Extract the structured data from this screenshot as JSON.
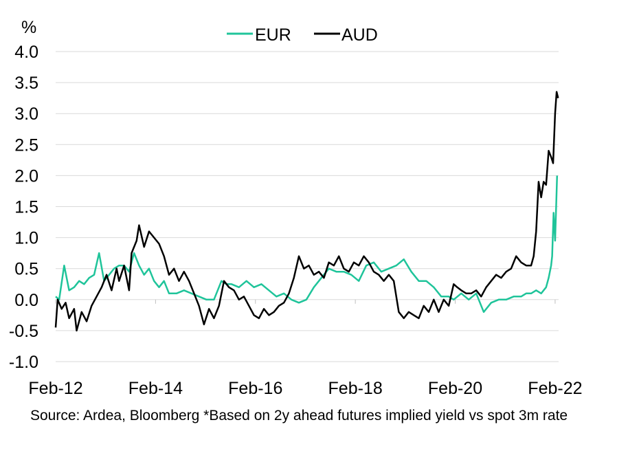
{
  "chart_data": {
    "type": "line",
    "ylabel": "%",
    "ylim": [
      -1.0,
      4.0
    ],
    "yticks": [
      "4.0",
      "3.5",
      "3.0",
      "2.5",
      "2.0",
      "1.5",
      "1.0",
      "0.5",
      "0.0",
      "-0.5",
      "-1.0"
    ],
    "ytick_values": [
      4.0,
      3.5,
      3.0,
      2.5,
      2.0,
      1.5,
      1.0,
      0.5,
      0.0,
      -0.5,
      -1.0
    ],
    "xlim": [
      2012.08,
      2022.15
    ],
    "xticks": [
      "Feb-12",
      "Feb-14",
      "Feb-16",
      "Feb-18",
      "Feb-20",
      "Feb-22"
    ],
    "xtick_values": [
      2012.08,
      2014.08,
      2016.08,
      2018.08,
      2020.08,
      2022.08
    ],
    "grid": true,
    "legend_position": "top-center",
    "series": [
      {
        "name": "EUR",
        "color": "#1fc49a",
        "x": [
          2012.08,
          2012.15,
          2012.25,
          2012.35,
          2012.45,
          2012.55,
          2012.65,
          2012.75,
          2012.85,
          2012.95,
          2013.05,
          2013.15,
          2013.25,
          2013.35,
          2013.45,
          2013.55,
          2013.65,
          2013.75,
          2013.85,
          2013.95,
          2014.05,
          2014.15,
          2014.25,
          2014.35,
          2014.5,
          2014.65,
          2014.8,
          2014.95,
          2015.1,
          2015.25,
          2015.4,
          2015.5,
          2015.6,
          2015.75,
          2015.9,
          2016.05,
          2016.2,
          2016.35,
          2016.5,
          2016.65,
          2016.8,
          2016.95,
          2017.1,
          2017.25,
          2017.4,
          2017.55,
          2017.7,
          2017.85,
          2018.0,
          2018.15,
          2018.3,
          2018.45,
          2018.6,
          2018.75,
          2018.9,
          2019.05,
          2019.2,
          2019.35,
          2019.5,
          2019.65,
          2019.8,
          2019.95,
          2020.05,
          2020.2,
          2020.35,
          2020.5,
          2020.65,
          2020.8,
          2020.95,
          2021.1,
          2021.25,
          2021.4,
          2021.5,
          2021.6,
          2021.7,
          2021.8,
          2021.85,
          2021.9,
          2021.95,
          2022.0,
          2022.02,
          2022.05,
          2022.08,
          2022.12
        ],
        "values": [
          0.05,
          0.0,
          0.55,
          0.15,
          0.2,
          0.3,
          0.25,
          0.35,
          0.4,
          0.75,
          0.3,
          0.4,
          0.5,
          0.55,
          0.55,
          0.45,
          0.75,
          0.55,
          0.4,
          0.5,
          0.3,
          0.2,
          0.3,
          0.1,
          0.1,
          0.15,
          0.1,
          0.05,
          0.0,
          0.0,
          0.3,
          0.25,
          0.25,
          0.2,
          0.3,
          0.2,
          0.25,
          0.15,
          0.05,
          0.1,
          0.0,
          -0.05,
          0.0,
          0.2,
          0.35,
          0.5,
          0.45,
          0.45,
          0.4,
          0.3,
          0.55,
          0.6,
          0.45,
          0.5,
          0.55,
          0.65,
          0.45,
          0.3,
          0.3,
          0.2,
          0.05,
          0.05,
          0.0,
          0.1,
          0.0,
          0.1,
          -0.2,
          -0.05,
          0.0,
          0.0,
          0.05,
          0.05,
          0.1,
          0.1,
          0.15,
          0.1,
          0.15,
          0.2,
          0.35,
          0.55,
          0.7,
          1.4,
          0.95,
          2.0
        ]
      },
      {
        "name": "AUD",
        "color": "#000000",
        "x": [
          2012.08,
          2012.12,
          2012.2,
          2012.28,
          2012.35,
          2012.45,
          2012.5,
          2012.6,
          2012.7,
          2012.8,
          2012.9,
          2013.0,
          2013.1,
          2013.2,
          2013.3,
          2013.35,
          2013.45,
          2013.55,
          2013.6,
          2013.7,
          2013.75,
          2013.85,
          2013.95,
          2014.05,
          2014.15,
          2014.25,
          2014.35,
          2014.45,
          2014.55,
          2014.65,
          2014.75,
          2014.85,
          2014.95,
          2015.05,
          2015.15,
          2015.25,
          2015.35,
          2015.45,
          2015.55,
          2015.65,
          2015.75,
          2015.85,
          2015.95,
          2016.05,
          2016.15,
          2016.25,
          2016.35,
          2016.45,
          2016.55,
          2016.65,
          2016.75,
          2016.85,
          2016.95,
          2017.05,
          2017.15,
          2017.25,
          2017.35,
          2017.45,
          2017.55,
          2017.65,
          2017.75,
          2017.85,
          2017.95,
          2018.05,
          2018.15,
          2018.25,
          2018.35,
          2018.45,
          2018.55,
          2018.65,
          2018.75,
          2018.85,
          2018.95,
          2019.05,
          2019.15,
          2019.25,
          2019.35,
          2019.45,
          2019.55,
          2019.65,
          2019.75,
          2019.85,
          2019.95,
          2020.05,
          2020.12,
          2020.2,
          2020.3,
          2020.4,
          2020.5,
          2020.6,
          2020.7,
          2020.8,
          2020.9,
          2021.0,
          2021.1,
          2021.2,
          2021.3,
          2021.4,
          2021.5,
          2021.6,
          2021.65,
          2021.7,
          2021.75,
          2021.8,
          2021.85,
          2021.9,
          2021.95,
          2022.0,
          2022.04,
          2022.08,
          2022.11,
          2022.14
        ],
        "values": [
          -0.45,
          0.0,
          -0.15,
          -0.05,
          -0.3,
          -0.15,
          -0.5,
          -0.2,
          -0.35,
          -0.1,
          0.05,
          0.2,
          0.4,
          0.15,
          0.5,
          0.3,
          0.55,
          0.15,
          0.75,
          0.95,
          1.2,
          0.85,
          1.1,
          1.0,
          0.9,
          0.7,
          0.4,
          0.5,
          0.3,
          0.45,
          0.3,
          0.1,
          -0.1,
          -0.4,
          -0.15,
          -0.3,
          -0.1,
          0.3,
          0.2,
          0.15,
          0.0,
          0.05,
          -0.1,
          -0.25,
          -0.3,
          -0.15,
          -0.25,
          -0.2,
          -0.1,
          -0.05,
          0.1,
          0.35,
          0.7,
          0.5,
          0.55,
          0.4,
          0.45,
          0.35,
          0.6,
          0.55,
          0.7,
          0.5,
          0.45,
          0.6,
          0.55,
          0.7,
          0.6,
          0.45,
          0.4,
          0.3,
          0.4,
          0.3,
          -0.2,
          -0.3,
          -0.2,
          -0.25,
          -0.3,
          -0.1,
          -0.2,
          0.0,
          -0.2,
          0.0,
          -0.1,
          0.25,
          0.2,
          0.15,
          0.1,
          0.1,
          0.15,
          0.05,
          0.2,
          0.3,
          0.4,
          0.35,
          0.45,
          0.5,
          0.7,
          0.6,
          0.55,
          0.55,
          0.7,
          1.1,
          1.9,
          1.65,
          1.9,
          1.85,
          2.4,
          2.3,
          2.2,
          3.0,
          3.35,
          3.25
        ]
      }
    ]
  },
  "source_note": "Source: Ardea, Bloomberg  *Based on 2y ahead futures implied yield vs spot 3m rate"
}
